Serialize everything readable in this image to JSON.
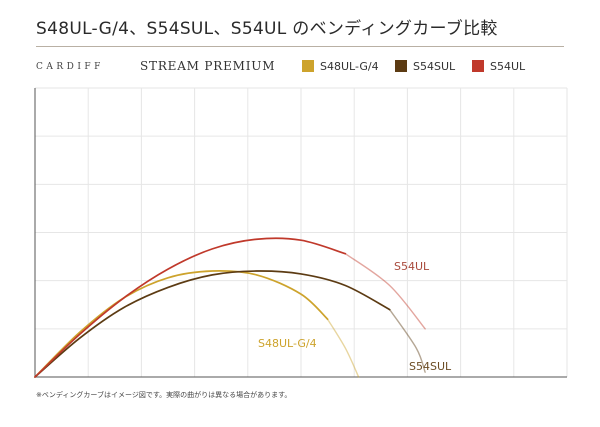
{
  "header": {
    "title": "S48UL-G/4、S54SUL、S54UL のベンディングカーブ比較",
    "brand": "CARDIFF",
    "product": "STREAM PREMIUM"
  },
  "legend": [
    {
      "label": "S48UL-G/4",
      "color": "#cda32c"
    },
    {
      "label": "S54SUL",
      "color": "#5c3b13"
    },
    {
      "label": "S54UL",
      "color": "#c0392b"
    }
  ],
  "footnote": "※ベンディングカーブはイメージ図です。実際の曲がりは異なる場合があります。",
  "chart_data": {
    "type": "line",
    "grid": true,
    "xlim": [
      0,
      6
    ],
    "ylim": [
      0,
      3
    ],
    "series": [
      {
        "name": "S48UL-G/4",
        "color": "#cda32c",
        "x": [
          0,
          0.5,
          1,
          1.5,
          2,
          2.5,
          3,
          3.3,
          3.5,
          3.65
        ],
        "y": [
          0,
          0.46,
          0.82,
          1.03,
          1.1,
          1.06,
          0.86,
          0.6,
          0.3,
          0
        ]
      },
      {
        "name": "S54SUL",
        "color": "#5c3b13",
        "x": [
          0,
          0.5,
          1,
          1.5,
          2,
          2.5,
          3,
          3.5,
          4,
          4.3,
          4.4
        ],
        "y": [
          0,
          0.4,
          0.72,
          0.93,
          1.06,
          1.1,
          1.07,
          0.95,
          0.7,
          0.3,
          0.05
        ]
      },
      {
        "name": "S54UL",
        "color": "#c0392b",
        "x": [
          0,
          0.5,
          1,
          1.5,
          2,
          2.5,
          3,
          3.5,
          4,
          4.4
        ],
        "y": [
          0,
          0.44,
          0.82,
          1.12,
          1.33,
          1.43,
          1.42,
          1.28,
          0.95,
          0.5
        ]
      }
    ],
    "annotations": [
      {
        "text": "S54UL",
        "color": "#a94a3c",
        "series": "S54UL"
      },
      {
        "text": "S48UL-G/4",
        "color": "#cda32c",
        "series": "S48UL-G/4"
      },
      {
        "text": "S54SUL",
        "color": "#6b4c24",
        "series": "S54SUL"
      }
    ]
  }
}
